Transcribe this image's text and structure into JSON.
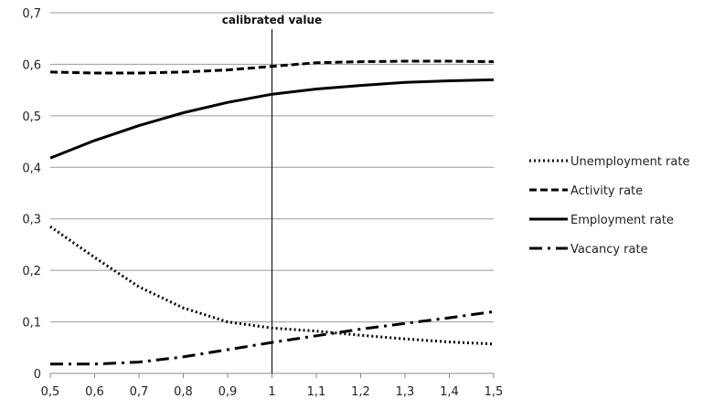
{
  "chart_data": {
    "type": "line",
    "annotation": "calibrated value",
    "annotation_x": 1.0,
    "x": [
      0.5,
      0.6,
      0.7,
      0.8,
      0.9,
      1.0,
      1.1,
      1.2,
      1.3,
      1.4,
      1.5
    ],
    "x_tick_labels": [
      "0,5",
      "0,6",
      "0,7",
      "0,8",
      "0,9",
      "1",
      "1,1",
      "1,2",
      "1,3",
      "1,4",
      "1,5"
    ],
    "y_tick_values": [
      0,
      0.1,
      0.2,
      0.3,
      0.4,
      0.5,
      0.6,
      0.7
    ],
    "y_tick_labels": [
      "0",
      "0,1",
      "0,2",
      "0,3",
      "0,4",
      "0,5",
      "0,6",
      "0,7"
    ],
    "xlim": [
      0.5,
      1.5
    ],
    "ylim": [
      0,
      0.7
    ],
    "grid": "horizontal",
    "legend_position": "right",
    "series": [
      {
        "name": "Unemployment rate",
        "dash": "dotted",
        "values": [
          0.285,
          0.225,
          0.168,
          0.127,
          0.1,
          0.088,
          0.082,
          0.074,
          0.067,
          0.061,
          0.057
        ]
      },
      {
        "name": "Activity rate",
        "dash": "dashed",
        "values": [
          0.585,
          0.583,
          0.583,
          0.585,
          0.589,
          0.596,
          0.603,
          0.605,
          0.606,
          0.606,
          0.605
        ]
      },
      {
        "name": "Employment rate",
        "dash": "solid",
        "values": [
          0.418,
          0.452,
          0.481,
          0.506,
          0.526,
          0.542,
          0.552,
          0.559,
          0.565,
          0.568,
          0.57
        ]
      },
      {
        "name": "Vacancy rate",
        "dash": "dashdot",
        "values": [
          0.018,
          0.018,
          0.022,
          0.032,
          0.046,
          0.06,
          0.073,
          0.086,
          0.097,
          0.108,
          0.12
        ]
      }
    ]
  }
}
